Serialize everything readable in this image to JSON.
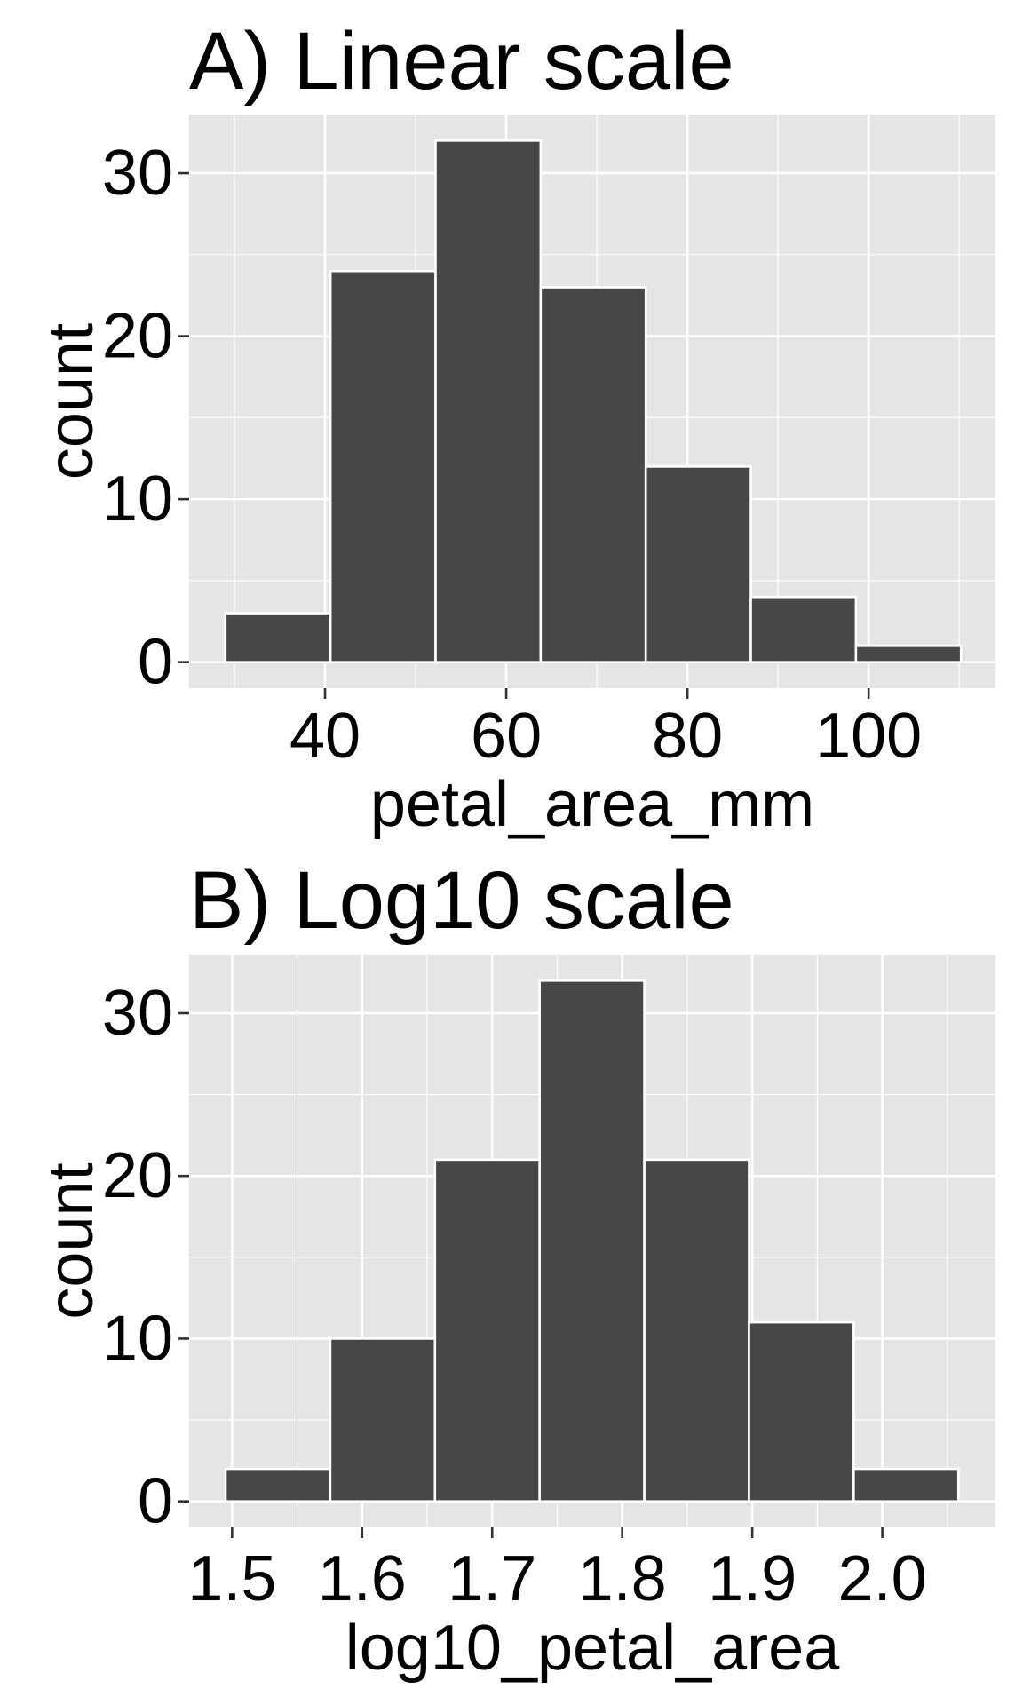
{
  "chart_data": [
    {
      "type": "bar",
      "title": "A) Linear scale",
      "xlabel": "petal_area_mm",
      "ylabel": "count",
      "bin_edges": [
        29.0,
        40.6,
        52.2,
        63.8,
        75.4,
        87.0,
        98.6,
        110.2
      ],
      "values": [
        3,
        24,
        32,
        23,
        12,
        4,
        1
      ],
      "xlim": [
        25.0,
        114.0
      ],
      "ylim": [
        -1.6,
        33.6
      ],
      "x_ticks": [
        40,
        60,
        80,
        100
      ],
      "x_tick_labels": [
        "40",
        "60",
        "80",
        "100"
      ],
      "y_ticks": [
        0,
        10,
        20,
        30
      ],
      "y_tick_labels": [
        "0",
        "10",
        "20",
        "30"
      ],
      "grid": true,
      "colors": {
        "panel": "#E5E5E5",
        "bar_fill": "#474747",
        "bar_outline": "#FFFFFF",
        "grid": "#FFFFFF"
      }
    },
    {
      "type": "bar",
      "title": "B) Log10 scale",
      "xlabel": "log10_petal_area",
      "ylabel": "count",
      "bin_edges": [
        1.495,
        1.5755,
        1.656,
        1.7365,
        1.817,
        1.8975,
        1.978,
        2.0585
      ],
      "values": [
        2,
        10,
        21,
        32,
        21,
        11,
        2
      ],
      "xlim": [
        1.467,
        2.087
      ],
      "ylim": [
        -1.6,
        33.6
      ],
      "x_ticks": [
        1.5,
        1.6,
        1.7,
        1.8,
        1.9,
        2.0
      ],
      "x_tick_labels": [
        "1.5",
        "1.6",
        "1.7",
        "1.8",
        "1.9",
        "2.0"
      ],
      "y_ticks": [
        0,
        10,
        20,
        30
      ],
      "y_tick_labels": [
        "0",
        "10",
        "20",
        "30"
      ],
      "grid": true,
      "colors": {
        "panel": "#E5E5E5",
        "bar_fill": "#474747",
        "bar_outline": "#FFFFFF",
        "grid": "#FFFFFF"
      }
    }
  ]
}
